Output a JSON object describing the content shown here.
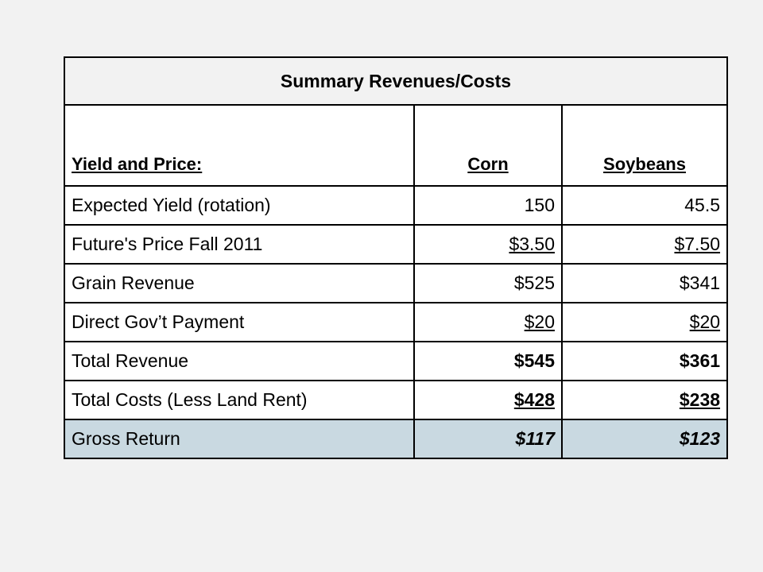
{
  "title": "Summary Revenues/Costs",
  "columns": {
    "label": "Yield and Price:",
    "corn": "Corn",
    "soybeans": "Soybeans"
  },
  "rows": [
    {
      "label": "Expected  Yield (rotation)",
      "corn": "150",
      "soybeans": "45.5"
    },
    {
      "label": "Future's Price Fall 2011",
      "corn": "$3.50",
      "soybeans": "$7.50"
    },
    {
      "label": "Grain Revenue",
      "corn": "$525",
      "soybeans": "$341"
    },
    {
      "label": "Direct Gov’t Payment",
      "corn": "$20",
      "soybeans": "$20"
    },
    {
      "label": "Total Revenue",
      "corn": "$545",
      "soybeans": "$361"
    },
    {
      "label": "Total Costs (Less Land Rent)",
      "corn": "$428",
      "soybeans": "$238"
    },
    {
      "label": "Gross Return",
      "corn": "$117",
      "soybeans": "$123"
    }
  ],
  "colors": {
    "background": "#f2f2f2",
    "table_bg": "#ffffff",
    "highlight_row": "#c9d9e1",
    "border": "#000000"
  }
}
